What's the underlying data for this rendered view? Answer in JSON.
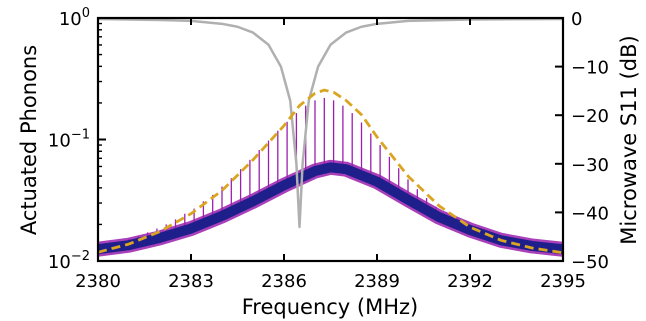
{
  "chart_data": {
    "type": "line",
    "xlabel": "Frequency (MHz)",
    "ylabel_left": "Actuated Phonons",
    "ylabel_right": "Microwave S11 (dB)",
    "xlim": [
      2380,
      2395
    ],
    "ylim_left": [
      0.01,
      1.0
    ],
    "ylim_right": [
      -50,
      0
    ],
    "yscale_left": "log",
    "grid": false,
    "legend": "none",
    "x_ticks": [
      "2380",
      "2383",
      "2386",
      "2389",
      "2392",
      "2395"
    ],
    "y_left_ticks": [
      {
        "base": "10",
        "exp": "−2",
        "value": 0.01
      },
      {
        "base": "10",
        "exp": "−1",
        "value": 0.1
      },
      {
        "base": "10",
        "exp": "0",
        "value": 1.0
      }
    ],
    "y_right_ticks": [
      "0",
      "−10",
      "−20",
      "−30",
      "−40",
      "−50"
    ],
    "series": [
      {
        "axis": "right",
        "style": "solid",
        "color": "#b0b0b0",
        "points": [
          [
            2380.0,
            -0.2
          ],
          [
            2381.0,
            -0.3
          ],
          [
            2382.0,
            -0.4
          ],
          [
            2383.0,
            -0.6
          ],
          [
            2384.0,
            -1.2
          ],
          [
            2384.5,
            -1.8
          ],
          [
            2385.0,
            -3.0
          ],
          [
            2385.5,
            -5.5
          ],
          [
            2385.9,
            -10.0
          ],
          [
            2386.2,
            -17.0
          ],
          [
            2386.4,
            -30.0
          ],
          [
            2386.5,
            -43.0
          ],
          [
            2386.6,
            -30.0
          ],
          [
            2386.8,
            -17.0
          ],
          [
            2387.1,
            -10.0
          ],
          [
            2387.5,
            -5.5
          ],
          [
            2388.0,
            -3.0
          ],
          [
            2388.5,
            -1.8
          ],
          [
            2389.0,
            -1.2
          ],
          [
            2390.0,
            -0.6
          ],
          [
            2392.0,
            -0.3
          ],
          [
            2395.0,
            -0.2
          ]
        ]
      },
      {
        "axis": "left",
        "style": "dashed",
        "color": "#daa520",
        "points": [
          [
            2380.0,
            0.0118
          ],
          [
            2381.0,
            0.0138
          ],
          [
            2382.0,
            0.0175
          ],
          [
            2383.0,
            0.0245
          ],
          [
            2384.0,
            0.038
          ],
          [
            2385.0,
            0.068
          ],
          [
            2386.0,
            0.13
          ],
          [
            2386.5,
            0.19
          ],
          [
            2387.0,
            0.24
          ],
          [
            2387.3,
            0.255
          ],
          [
            2387.6,
            0.245
          ],
          [
            2388.0,
            0.21
          ],
          [
            2388.5,
            0.16
          ],
          [
            2389.0,
            0.105
          ],
          [
            2390.0,
            0.05
          ],
          [
            2391.0,
            0.0285
          ],
          [
            2392.0,
            0.019
          ],
          [
            2393.0,
            0.0148
          ],
          [
            2394.0,
            0.0128
          ],
          [
            2395.0,
            0.0117
          ]
        ]
      },
      {
        "axis": "left",
        "style": "band",
        "color": "#1f1f8c",
        "points": [
          [
            2380.0,
            0.0125
          ],
          [
            2381.0,
            0.0135
          ],
          [
            2382.0,
            0.0155
          ],
          [
            2383.0,
            0.0185
          ],
          [
            2384.0,
            0.0235
          ],
          [
            2385.0,
            0.031
          ],
          [
            2386.0,
            0.042
          ],
          [
            2387.0,
            0.055
          ],
          [
            2387.5,
            0.059
          ],
          [
            2388.0,
            0.057
          ],
          [
            2389.0,
            0.045
          ],
          [
            2390.0,
            0.032
          ],
          [
            2391.0,
            0.023
          ],
          [
            2392.0,
            0.018
          ],
          [
            2393.0,
            0.0148
          ],
          [
            2394.0,
            0.0133
          ],
          [
            2395.0,
            0.0125
          ]
        ]
      },
      {
        "axis": "left",
        "style": "spikes",
        "color": "#9a1fae",
        "spike_tops": [
          [
            2381.0,
            0.0152
          ],
          [
            2381.3,
            0.016
          ],
          [
            2381.6,
            0.0172
          ],
          [
            2381.9,
            0.0185
          ],
          [
            2382.2,
            0.02
          ],
          [
            2382.5,
            0.022
          ],
          [
            2382.8,
            0.0245
          ],
          [
            2383.1,
            0.027
          ],
          [
            2383.4,
            0.031
          ],
          [
            2383.7,
            0.035
          ],
          [
            2384.0,
            0.041
          ],
          [
            2384.3,
            0.048
          ],
          [
            2384.6,
            0.057
          ],
          [
            2384.9,
            0.068
          ],
          [
            2385.2,
            0.082
          ],
          [
            2385.5,
            0.098
          ],
          [
            2385.8,
            0.118
          ],
          [
            2386.1,
            0.14
          ],
          [
            2386.4,
            0.165
          ],
          [
            2386.7,
            0.19
          ],
          [
            2387.0,
            0.21
          ],
          [
            2387.3,
            0.22
          ],
          [
            2387.6,
            0.21
          ],
          [
            2387.9,
            0.19
          ],
          [
            2388.2,
            0.165
          ],
          [
            2388.5,
            0.138
          ],
          [
            2388.8,
            0.112
          ],
          [
            2389.1,
            0.09
          ],
          [
            2389.4,
            0.072
          ],
          [
            2389.7,
            0.058
          ],
          [
            2390.0,
            0.047
          ],
          [
            2390.3,
            0.039
          ],
          [
            2390.6,
            0.033
          ],
          [
            2390.9,
            0.028
          ],
          [
            2391.2,
            0.024
          ],
          [
            2391.5,
            0.0215
          ],
          [
            2391.8,
            0.0195
          ],
          [
            2392.1,
            0.0178
          ]
        ]
      }
    ]
  }
}
